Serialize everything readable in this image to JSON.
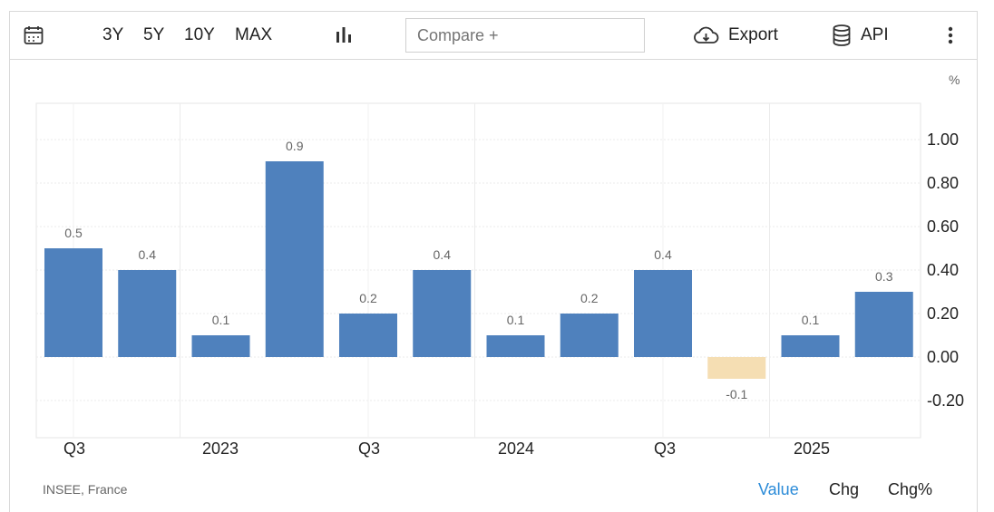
{
  "toolbar": {
    "ranges": [
      "3Y",
      "5Y",
      "10Y",
      "MAX"
    ],
    "compare_placeholder": "Compare +",
    "export_label": "Export",
    "api_label": "API"
  },
  "unit": "%",
  "source": "INSEE, France",
  "modes": {
    "value": "Value",
    "chg": "Chg",
    "chgpct": "Chg%"
  },
  "colors": {
    "positive": "#4f81bd",
    "negative": "#f5deb3",
    "active_mode": "#2b8bd8"
  },
  "chart_data": {
    "type": "bar",
    "categories": [
      "2022 Q3",
      "2022 Q4",
      "2023 Q1",
      "2023 Q2",
      "2023 Q3",
      "2023 Q4",
      "2024 Q1",
      "2024 Q2",
      "2024 Q3",
      "2024 Q4",
      "2025 Q1",
      "2025 Q2"
    ],
    "values": [
      0.5,
      0.4,
      0.1,
      0.9,
      0.2,
      0.4,
      0.1,
      0.2,
      0.4,
      -0.1,
      0.1,
      0.3
    ],
    "data_labels": [
      "0.5",
      "0.4",
      "0.1",
      "0.9",
      "0.2",
      "0.4",
      "0.1",
      "0.2",
      "0.4",
      "-0.1",
      "0.1",
      "0.3"
    ],
    "x_tick_labels": [
      "Q3",
      "2023",
      "Q3",
      "2024",
      "Q3",
      "2025"
    ],
    "y_tick_labels": [
      "1.00",
      "0.80",
      "0.60",
      "0.40",
      "0.20",
      "0.00",
      "-0.20"
    ],
    "y_ticks": [
      1.0,
      0.8,
      0.6,
      0.4,
      0.2,
      0.0,
      -0.2
    ],
    "ylim": [
      -0.38,
      1.18
    ],
    "axis_position": "right",
    "grid": true
  }
}
